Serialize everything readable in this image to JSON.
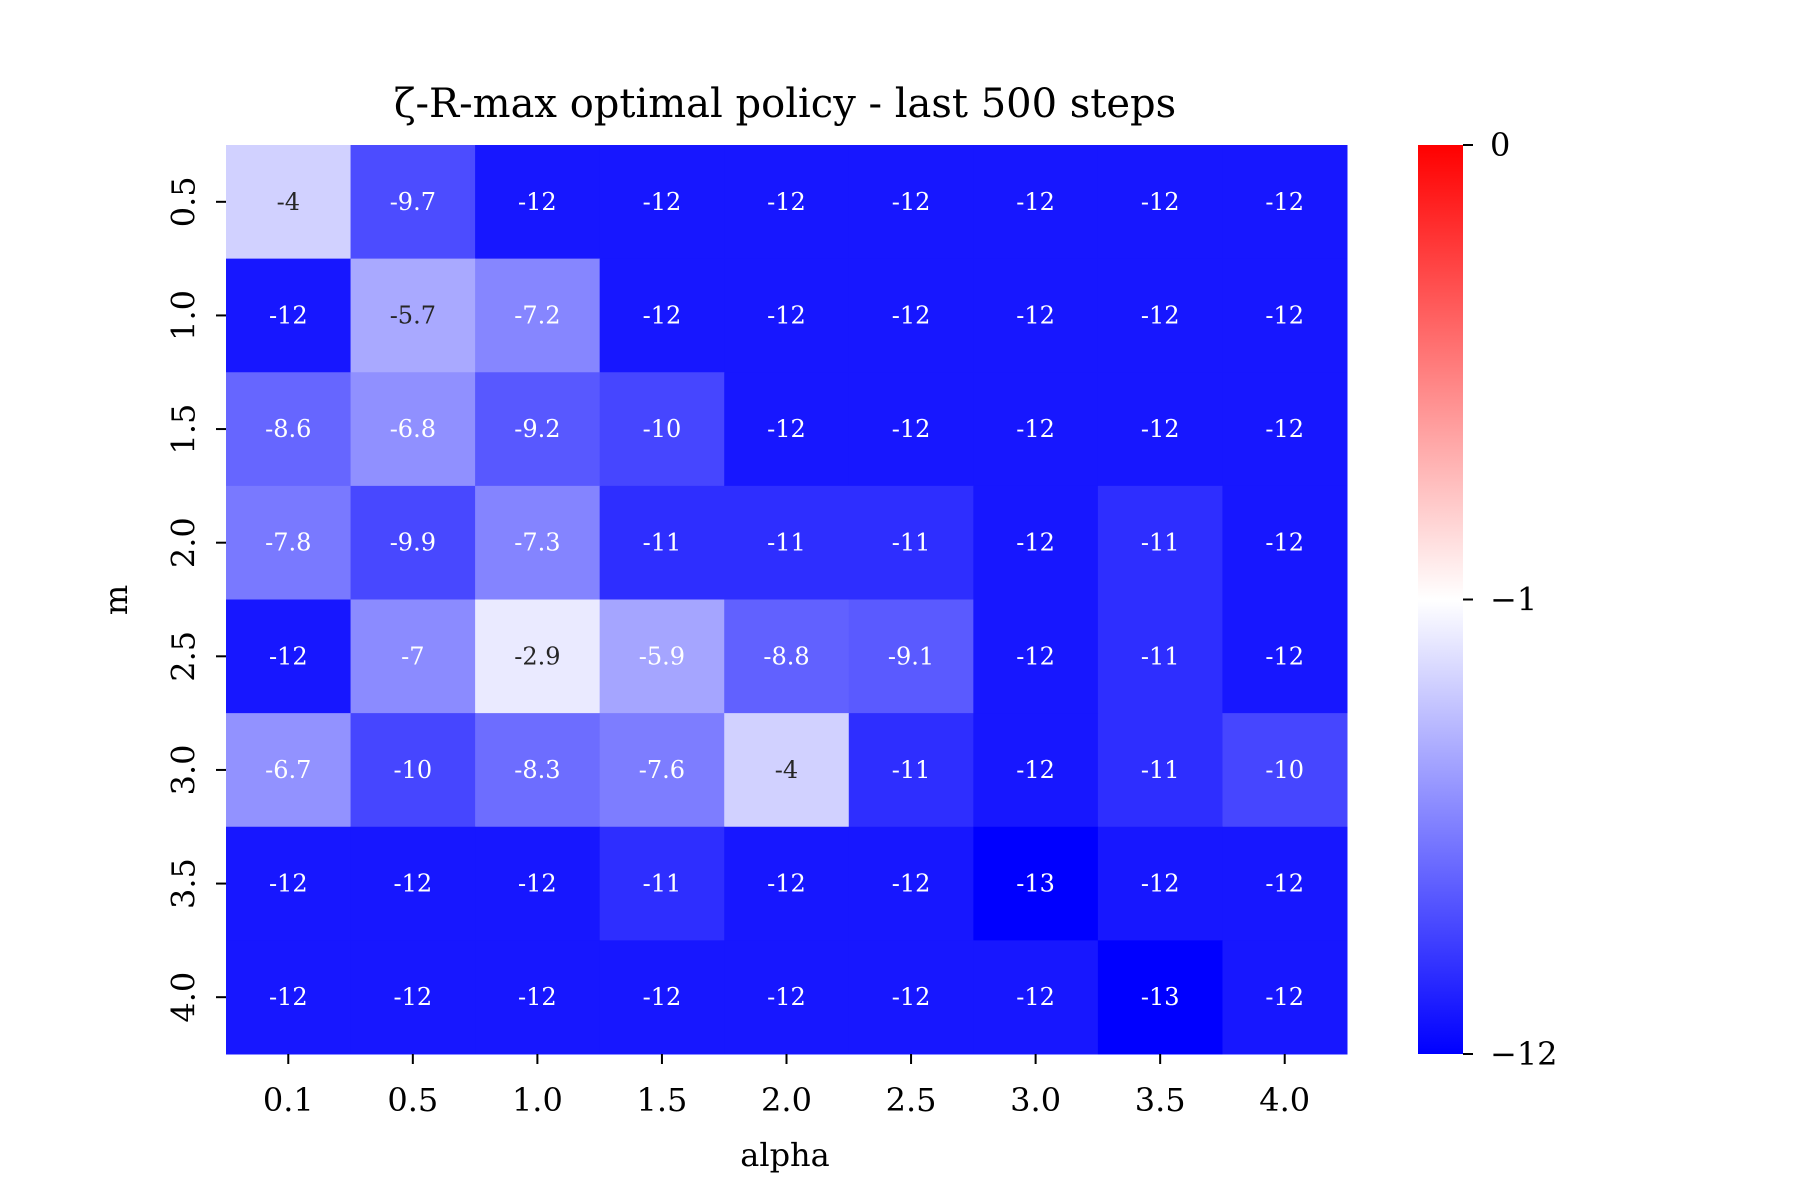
{
  "chart_data": {
    "type": "heatmap",
    "title": "ζ-R-max optimal policy - last 500 steps",
    "xlabel": "alpha",
    "ylabel": "m",
    "x_categories": [
      "0.1",
      "0.5",
      "1.0",
      "1.5",
      "2.0",
      "2.5",
      "3.0",
      "3.5",
      "4.0"
    ],
    "y_categories": [
      "0.5",
      "1.0",
      "1.5",
      "2.0",
      "2.5",
      "3.0",
      "3.5",
      "4.0"
    ],
    "values": [
      [
        -4,
        -9.7,
        -12,
        -12,
        -12,
        -12,
        -12,
        -12,
        -12
      ],
      [
        -12,
        -5.7,
        -7.2,
        -12,
        -12,
        -12,
        -12,
        -12,
        -12
      ],
      [
        -8.6,
        -6.8,
        -9.2,
        -10,
        -12,
        -12,
        -12,
        -12,
        -12
      ],
      [
        -7.8,
        -9.9,
        -7.3,
        -11,
        -11,
        -11,
        -12,
        -11,
        -12
      ],
      [
        -12,
        -7,
        -2.9,
        -5.9,
        -8.8,
        -9.1,
        -12,
        -11,
        -12
      ],
      [
        -6.7,
        -10,
        -8.3,
        -7.6,
        -4,
        -11,
        -12,
        -11,
        -10
      ],
      [
        -12,
        -12,
        -12,
        -11,
        -12,
        -12,
        -13,
        -12,
        -12
      ],
      [
        -12,
        -12,
        -12,
        -12,
        -12,
        -12,
        -12,
        -13,
        -12
      ]
    ],
    "colorbar": {
      "ticks": [
        "0",
        "−1",
        "−12"
      ],
      "colors": [
        "#ff0000",
        "#ffffff",
        "#0000ff"
      ]
    }
  }
}
